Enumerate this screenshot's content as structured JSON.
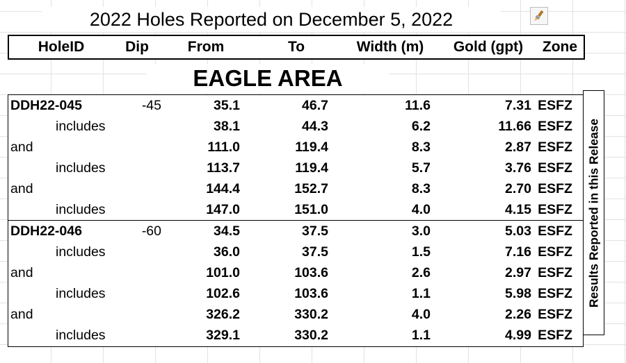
{
  "title": "2022 Holes Reported on December 5, 2022",
  "toolbar": {
    "icon": "paintbrush-icon"
  },
  "headers": [
    "HoleID",
    "Dip",
    "From",
    "To",
    "Width (m)",
    "Gold (gpt)",
    "Zone"
  ],
  "area_label": "EAGLE AREA",
  "side_label": "Results Reported in this Release",
  "rows": [
    {
      "label": "DDH22-045",
      "dip": "-45",
      "from": "35.1",
      "to": "46.7",
      "width": "11.6",
      "gold": "7.31",
      "zone": "ESFZ"
    },
    {
      "label": "includes",
      "dip": "",
      "from": "38.1",
      "to": "44.3",
      "width": "6.2",
      "gold": "11.66",
      "zone": "ESFZ"
    },
    {
      "label": "and",
      "dip": "",
      "from": "111.0",
      "to": "119.4",
      "width": "8.3",
      "gold": "2.87",
      "zone": "ESFZ"
    },
    {
      "label": "includes",
      "dip": "",
      "from": "113.7",
      "to": "119.4",
      "width": "5.7",
      "gold": "3.76",
      "zone": "ESFZ"
    },
    {
      "label": "and",
      "dip": "",
      "from": "144.4",
      "to": "152.7",
      "width": "8.3",
      "gold": "2.70",
      "zone": "ESFZ"
    },
    {
      "label": "includes",
      "dip": "",
      "from": "147.0",
      "to": "151.0",
      "width": "4.0",
      "gold": "4.15",
      "zone": "ESFZ"
    },
    {
      "label": "DDH22-046",
      "dip": "-60",
      "from": "34.5",
      "to": "37.5",
      "width": "3.0",
      "gold": "5.03",
      "zone": "ESFZ"
    },
    {
      "label": "includes",
      "dip": "",
      "from": "36.0",
      "to": "37.5",
      "width": "1.5",
      "gold": "7.16",
      "zone": "ESFZ"
    },
    {
      "label": "and",
      "dip": "",
      "from": "101.0",
      "to": "103.6",
      "width": "2.6",
      "gold": "2.97",
      "zone": "ESFZ"
    },
    {
      "label": "includes",
      "dip": "",
      "from": "102.6",
      "to": "103.6",
      "width": "1.1",
      "gold": "5.98",
      "zone": "ESFZ"
    },
    {
      "label": "and",
      "dip": "",
      "from": "326.2",
      "to": "330.2",
      "width": "4.0",
      "gold": "2.26",
      "zone": "ESFZ"
    },
    {
      "label": "includes",
      "dip": "",
      "from": "329.1",
      "to": "330.2",
      "width": "1.1",
      "gold": "4.99",
      "zone": "ESFZ"
    }
  ]
}
